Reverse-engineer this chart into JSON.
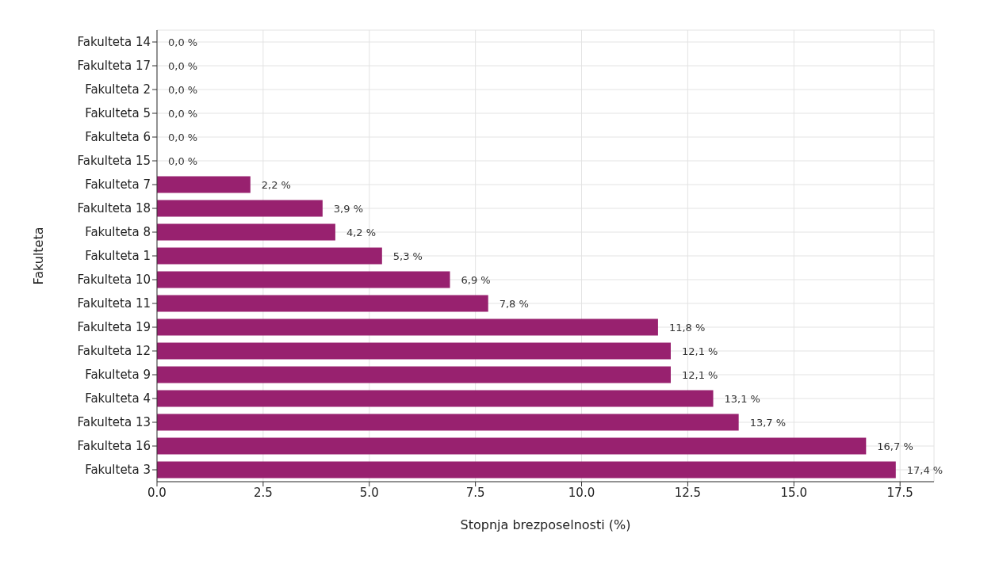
{
  "chart_data": {
    "type": "bar",
    "orientation": "horizontal",
    "xlabel": "Stopnja brezposelnosti (%)",
    "ylabel": "Fakulteta",
    "categories": [
      "Fakulteta 14",
      "Fakulteta 17",
      "Fakulteta 2",
      "Fakulteta 5",
      "Fakulteta 6",
      "Fakulteta 15",
      "Fakulteta 7",
      "Fakulteta 18",
      "Fakulteta 8",
      "Fakulteta 1",
      "Fakulteta 10",
      "Fakulteta 11",
      "Fakulteta 19",
      "Fakulteta 12",
      "Fakulteta 9",
      "Fakulteta 4",
      "Fakulteta 13",
      "Fakulteta 16",
      "Fakulteta 3"
    ],
    "values": [
      0,
      0,
      0,
      0,
      0,
      0,
      2.2,
      3.9,
      4.2,
      5.3,
      6.9,
      7.8,
      11.8,
      12.1,
      12.1,
      13.1,
      13.7,
      16.7,
      17.4
    ],
    "value_labels": [
      "0,0 %",
      "0,0 %",
      "0,0 %",
      "0,0 %",
      "0,0 %",
      "0,0 %",
      "2,2 %",
      "3,9 %",
      "4,2 %",
      "5,3 %",
      "6,9 %",
      "7,8 %",
      "11,8 %",
      "12,1 %",
      "12,1 %",
      "13,1 %",
      "13,7 %",
      "16,7 %",
      "17,4 %"
    ],
    "color": "#98216f",
    "xlim": [
      0,
      18.3
    ],
    "xticks": [
      {
        "value": 0,
        "label": "0.0"
      },
      {
        "value": 2.5,
        "label": "2.5"
      },
      {
        "value": 5,
        "label": "5.0"
      },
      {
        "value": 7.5,
        "label": "7.5"
      },
      {
        "value": 10,
        "label": "10.0"
      },
      {
        "value": 12.5,
        "label": "12.5"
      },
      {
        "value": 15,
        "label": "15.0"
      },
      {
        "value": 17.5,
        "label": "17.5"
      }
    ],
    "grid": true
  }
}
